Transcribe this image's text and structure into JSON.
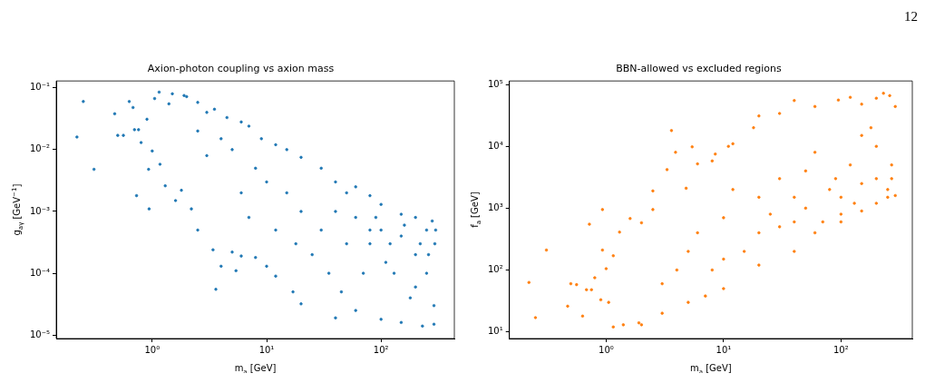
{
  "chart_data": [
    {
      "type": "scatter",
      "title": "Axion-photon coupling vs axion mass",
      "xlabel": "m$_{a}$ [GeV]",
      "ylabel": "g$_{aγ}$ [GeV$^{−1}$]",
      "log": "xy",
      "grid": false,
      "marker": "circle",
      "xlim": [
        0.145,
        437
      ],
      "ylim": [
        8.8e-06,
        0.129
      ],
      "xticks": [
        {
          "value": 1,
          "label": "10⁰"
        },
        {
          "value": 10,
          "label": "10¹"
        },
        {
          "value": 100,
          "label": "10²"
        }
      ],
      "yticks": [
        {
          "value": 1e-05,
          "label": "10⁻⁵"
        },
        {
          "value": 0.0001,
          "label": "10⁻⁴"
        },
        {
          "value": 0.001,
          "label": "10⁻³"
        },
        {
          "value": 0.01,
          "label": "10⁻²"
        },
        {
          "value": 0.1,
          "label": "10⁻¹"
        }
      ],
      "series": [
        {
          "color": "#1f77b4",
          "x": [
            0.22,
            0.25,
            0.31,
            0.47,
            0.5,
            0.56,
            0.63,
            0.68,
            0.7,
            0.73,
            0.76,
            0.8,
            0.9,
            0.93,
            0.94,
            1.0,
            1.05,
            1.15,
            1.17,
            1.3,
            1.4,
            1.5,
            1.6,
            1.8,
            1.9,
            2.0,
            2.2,
            2.5,
            2.5,
            3,
            3.4,
            3.6,
            3.5,
            4,
            4.5,
            5,
            5.4,
            6,
            6,
            7,
            8,
            9,
            10,
            12,
            12,
            15,
            17,
            20,
            20,
            30,
            40,
            40,
            60,
            60,
            80,
            100,
            100,
            150,
            150,
            200,
            230,
            280,
            290,
            295,
            300,
            290,
            20,
            30,
            40,
            50,
            60,
            80,
            100,
            120,
            150,
            200,
            250,
            70,
            130,
            200,
            10,
            15,
            8,
            5,
            6,
            12,
            25,
            35,
            50,
            90,
            110,
            180,
            250,
            4,
            3,
            2.5,
            7,
            18,
            45,
            80,
            160,
            220,
            260
          ],
          "values": [
            0.016,
            0.06,
            0.0048,
            0.038,
            0.017,
            0.017,
            0.06,
            0.048,
            0.021,
            0.0018,
            0.021,
            0.013,
            0.031,
            0.0048,
            0.0011,
            0.0095,
            0.067,
            0.085,
            0.0058,
            0.0026,
            0.055,
            0.08,
            0.0015,
            0.0022,
            0.075,
            0.072,
            0.0011,
            0.0005,
            0.058,
            0.04,
            0.00024,
            5.5e-05,
            0.045,
            0.00013,
            0.033,
            0.00022,
            0.00011,
            0.028,
            0.00019,
            0.024,
            0.00018,
            0.015,
            0.00013,
            9e-05,
            0.012,
            0.01,
            5e-05,
            3.2e-05,
            0.0075,
            0.005,
            1.9e-05,
            0.003,
            0.0025,
            2.5e-05,
            0.0018,
            0.0013,
            1.8e-05,
            0.0009,
            1.6e-05,
            0.0008,
            1.4e-05,
            0.0007,
            1.5e-05,
            0.0003,
            0.0005,
            3e-05,
            0.001,
            0.0005,
            0.001,
            0.0003,
            0.0008,
            0.0005,
            0.0005,
            0.0003,
            0.0004,
            0.0002,
            0.0005,
            0.0001,
            0.0001,
            6e-05,
            0.003,
            0.002,
            0.005,
            0.01,
            0.002,
            0.0005,
            0.0002,
            0.0001,
            0.002,
            0.0008,
            0.00015,
            4e-05,
            0.0001,
            0.015,
            0.008,
            0.02,
            0.0008,
            0.0003,
            5e-05,
            0.0003,
            0.0006,
            0.0003,
            0.0002
          ]
        }
      ]
    },
    {
      "type": "scatter",
      "title": "BBN-allowed vs excluded regions",
      "xlabel": "m$_{a}$ [GeV]",
      "ylabel": "f$_{a}$ [GeV]",
      "log": "xy",
      "grid": false,
      "marker": "circle",
      "xlim": [
        0.15,
        405
      ],
      "ylim": [
        7.8,
        114000
      ],
      "annotations": [
        "12"
      ],
      "xticks": [
        {
          "value": 1,
          "label": "10⁰"
        },
        {
          "value": 10,
          "label": "10¹"
        },
        {
          "value": 100,
          "label": "10²"
        }
      ],
      "yticks": [
        {
          "value": 10,
          "label": "10¹"
        },
        {
          "value": 100,
          "label": "10²"
        },
        {
          "value": 1000,
          "label": "10³"
        },
        {
          "value": 10000,
          "label": "10⁴"
        },
        {
          "value": 100000,
          "label": "10⁵"
        }
      ],
      "series": [
        {
          "color": "#ff7f0e",
          "x": [
            0.22,
            0.25,
            0.31,
            0.47,
            0.5,
            0.56,
            0.63,
            0.68,
            0.72,
            0.75,
            0.8,
            0.9,
            0.93,
            0.93,
            1.0,
            1.05,
            1.15,
            1.15,
            1.3,
            1.4,
            1.6,
            1.9,
            2,
            2.5,
            2.5,
            3.3,
            3.6,
            3.9,
            5.4,
            4.8,
            6,
            8,
            8.5,
            12,
            11,
            18,
            20,
            30,
            40,
            60,
            95,
            120,
            150,
            200,
            230,
            260,
            290,
            290,
            250,
            200,
            150,
            100,
            60,
            40,
            20,
            10,
            7,
            5,
            3,
            2,
            50,
            80,
            100,
            150,
            200,
            250,
            120,
            200,
            180,
            60,
            30,
            20,
            15,
            10,
            8,
            40,
            100,
            70,
            30,
            20,
            10,
            6,
            4,
            3,
            5,
            12,
            25,
            150,
            270,
            270,
            90,
            130,
            40,
            50
          ],
          "values": [
            63,
            17,
            210,
            26,
            60,
            58,
            18,
            48,
            550,
            48,
            75,
            33,
            950,
            210,
            105,
            30,
            12,
            170,
            410,
            13,
            680,
            14,
            580,
            950,
            1900,
            4200,
            18000,
            8000,
            9800,
            2100,
            5200,
            5800,
            7500,
            11000,
            10000,
            20000,
            31000,
            34000,
            55000,
            44000,
            56000,
            62000,
            48000,
            60000,
            72000,
            66000,
            44000,
            1600,
            1500,
            1200,
            900,
            600,
            400,
            200,
            120,
            50,
            38,
            30,
            20,
            13,
            1000,
            2000,
            1500,
            2500,
            3000,
            2000,
            5000,
            10000,
            20000,
            8000,
            500,
            400,
            200,
            150,
            100,
            1500,
            800,
            600,
            3000,
            1500,
            700,
            400,
            100,
            60,
            200,
            2000,
            800,
            15000,
            5000,
            3000,
            3000,
            1200,
            600,
            4000
          ]
        }
      ]
    }
  ]
}
